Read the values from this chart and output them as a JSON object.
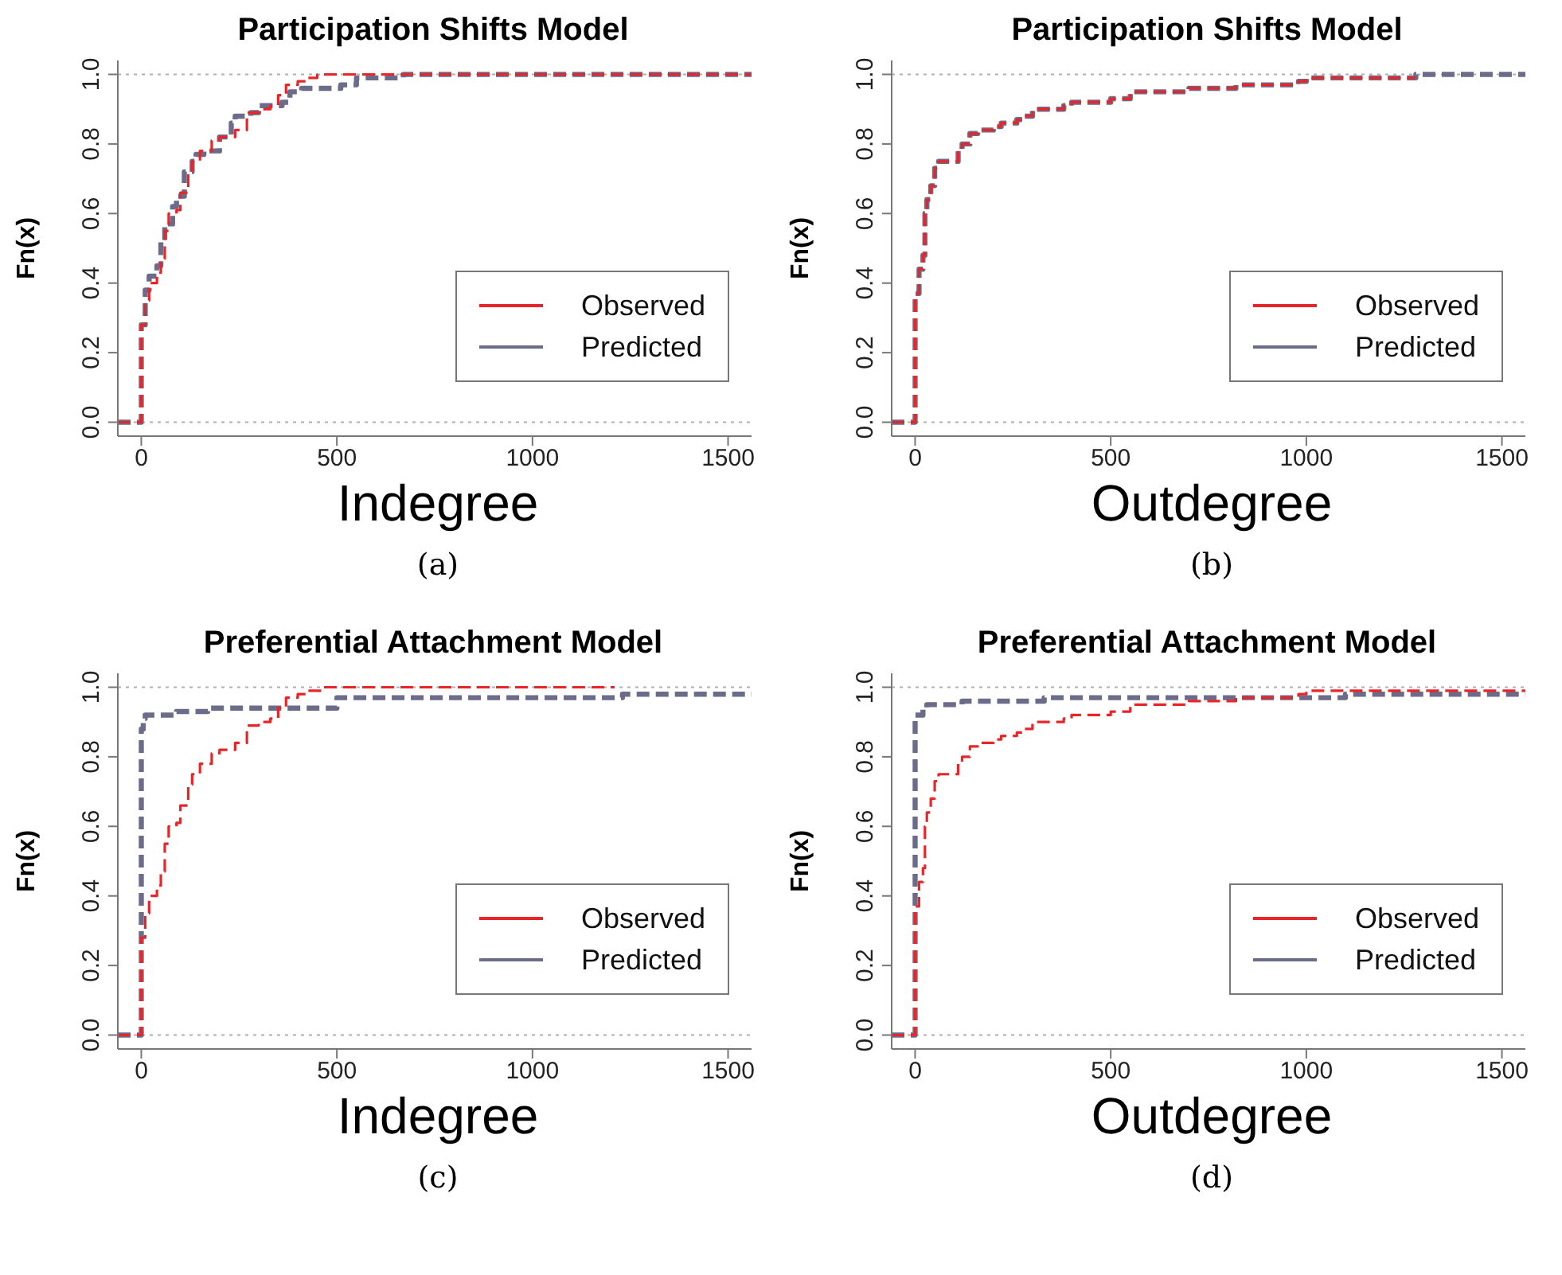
{
  "chart_data": [
    {
      "type": "step",
      "title": "Participation Shifts Model",
      "xlabel": "Indegree",
      "ylabel": "Fn(x)",
      "annotations": [
        "(a)"
      ],
      "xlim": [
        -60,
        1560
      ],
      "ylim": [
        -0.04,
        1.04
      ],
      "xticks": [
        0,
        500,
        1000,
        1500
      ],
      "yticks": [
        {
          "value": 0,
          "label": "0.0"
        },
        {
          "value": 0.2,
          "label": "0.2"
        },
        {
          "value": 0.4,
          "label": "0.4"
        },
        {
          "value": 0.6,
          "label": "0.6"
        },
        {
          "value": 0.8,
          "label": "0.8"
        },
        {
          "value": 1,
          "label": "1.0"
        }
      ],
      "legend": "bottom right",
      "ref_lines": [
        {
          "axis": "y",
          "value": 0,
          "color": "#b0b0b0",
          "line_style": "dotted"
        },
        {
          "axis": "y",
          "value": 1,
          "color": "#b0b0b0",
          "line_style": "dotted"
        }
      ],
      "series": [
        {
          "name": "Observed",
          "color": "#e8262a",
          "line_style": "dashed",
          "x": [
            -60,
            0,
            10,
            20,
            40,
            50,
            60,
            70,
            90,
            100,
            120,
            130,
            150,
            180,
            200,
            240,
            270,
            300,
            330,
            350,
            370,
            400,
            420,
            450,
            1560
          ],
          "values": [
            0,
            0.28,
            0.35,
            0.4,
            0.43,
            0.47,
            0.55,
            0.6,
            0.61,
            0.66,
            0.72,
            0.75,
            0.78,
            0.81,
            0.82,
            0.84,
            0.89,
            0.9,
            0.91,
            0.94,
            0.97,
            0.98,
            0.99,
            1.0,
            1.0
          ]
        },
        {
          "name": "Predicted",
          "color": "#6b6b8a",
          "line_style": "dashed",
          "x": [
            -60,
            0,
            10,
            20,
            40,
            50,
            60,
            80,
            90,
            110,
            130,
            140,
            160,
            200,
            230,
            240,
            280,
            300,
            360,
            380,
            410,
            480,
            510,
            550,
            650,
            670,
            1560
          ],
          "values": [
            0,
            0.28,
            0.38,
            0.42,
            0.45,
            0.52,
            0.57,
            0.62,
            0.65,
            0.72,
            0.75,
            0.77,
            0.78,
            0.82,
            0.86,
            0.88,
            0.89,
            0.91,
            0.92,
            0.95,
            0.96,
            0.96,
            0.97,
            0.99,
            0.99,
            1.0,
            1.0
          ]
        }
      ]
    },
    {
      "type": "step",
      "title": "Participation Shifts Model",
      "xlabel": "Outdegree",
      "ylabel": "Fn(x)",
      "annotations": [
        "(b)"
      ],
      "xlim": [
        -60,
        1560
      ],
      "ylim": [
        -0.04,
        1.04
      ],
      "xticks": [
        0,
        500,
        1000,
        1500
      ],
      "yticks": [
        {
          "value": 0,
          "label": "0.0"
        },
        {
          "value": 0.2,
          "label": "0.2"
        },
        {
          "value": 0.4,
          "label": "0.4"
        },
        {
          "value": 0.6,
          "label": "0.6"
        },
        {
          "value": 0.8,
          "label": "0.8"
        },
        {
          "value": 1,
          "label": "1.0"
        }
      ],
      "legend": "bottom right",
      "ref_lines": [
        {
          "axis": "y",
          "value": 0,
          "color": "#b0b0b0",
          "line_style": "dotted"
        },
        {
          "axis": "y",
          "value": 1,
          "color": "#b0b0b0",
          "line_style": "dotted"
        }
      ],
      "series": [
        {
          "name": "Observed",
          "color": "#e8262a",
          "line_style": "dashed",
          "x": [
            -60,
            0,
            10,
            20,
            25,
            30,
            40,
            50,
            60,
            100,
            110,
            120,
            140,
            160,
            200,
            220,
            260,
            280,
            300,
            380,
            400,
            480,
            500,
            550,
            700,
            820,
            980,
            1000,
            1280
          ],
          "values": [
            0,
            0.37,
            0.44,
            0.48,
            0.6,
            0.64,
            0.68,
            0.73,
            0.75,
            0.75,
            0.78,
            0.8,
            0.83,
            0.84,
            0.85,
            0.86,
            0.87,
            0.88,
            0.9,
            0.91,
            0.92,
            0.92,
            0.93,
            0.95,
            0.96,
            0.97,
            0.98,
            0.99,
            0.99
          ]
        },
        {
          "name": "Predicted",
          "color": "#6b6b8a",
          "line_style": "dashed",
          "x": [
            -60,
            0,
            10,
            20,
            25,
            30,
            40,
            50,
            60,
            100,
            110,
            120,
            140,
            160,
            200,
            220,
            260,
            280,
            300,
            380,
            400,
            480,
            500,
            550,
            700,
            820,
            980,
            1000,
            1280,
            1560
          ],
          "values": [
            0,
            0.37,
            0.44,
            0.48,
            0.6,
            0.64,
            0.68,
            0.73,
            0.75,
            0.75,
            0.78,
            0.8,
            0.83,
            0.84,
            0.85,
            0.86,
            0.87,
            0.88,
            0.9,
            0.91,
            0.92,
            0.92,
            0.93,
            0.95,
            0.96,
            0.97,
            0.98,
            0.99,
            1.0,
            1.0
          ]
        }
      ]
    },
    {
      "type": "step",
      "title": "Preferential Attachment Model",
      "xlabel": "Indegree",
      "ylabel": "Fn(x)",
      "annotations": [
        "(c)"
      ],
      "xlim": [
        -60,
        1560
      ],
      "ylim": [
        -0.04,
        1.04
      ],
      "xticks": [
        0,
        500,
        1000,
        1500
      ],
      "yticks": [
        {
          "value": 0,
          "label": "0.0"
        },
        {
          "value": 0.2,
          "label": "0.2"
        },
        {
          "value": 0.4,
          "label": "0.4"
        },
        {
          "value": 0.6,
          "label": "0.6"
        },
        {
          "value": 0.8,
          "label": "0.8"
        },
        {
          "value": 1,
          "label": "1.0"
        }
      ],
      "legend": "bottom right",
      "ref_lines": [
        {
          "axis": "y",
          "value": 0,
          "color": "#b0b0b0",
          "line_style": "dotted"
        },
        {
          "axis": "y",
          "value": 1,
          "color": "#b0b0b0",
          "line_style": "dotted"
        }
      ],
      "series": [
        {
          "name": "Observed",
          "color": "#e8262a",
          "line_style": "dashed",
          "x": [
            -60,
            0,
            10,
            20,
            40,
            50,
            60,
            70,
            90,
            100,
            120,
            130,
            150,
            180,
            200,
            240,
            270,
            300,
            330,
            350,
            370,
            400,
            420,
            460,
            1210
          ],
          "values": [
            0,
            0.28,
            0.35,
            0.4,
            0.43,
            0.47,
            0.55,
            0.6,
            0.61,
            0.66,
            0.72,
            0.75,
            0.78,
            0.81,
            0.82,
            0.84,
            0.89,
            0.9,
            0.91,
            0.94,
            0.97,
            0.98,
            0.99,
            1.0,
            1.0
          ]
        },
        {
          "name": "Predicted",
          "color": "#6b6b8a",
          "line_style": "dashed",
          "x": [
            -60,
            0,
            5,
            10,
            90,
            170,
            480,
            500,
            1220,
            1230,
            1560
          ],
          "values": [
            0,
            0.88,
            0.91,
            0.92,
            0.93,
            0.94,
            0.94,
            0.97,
            0.97,
            0.98,
            0.98
          ]
        }
      ]
    },
    {
      "type": "step",
      "title": "Preferential Attachment Model",
      "xlabel": "Outdegree",
      "ylabel": "Fn(x)",
      "annotations": [
        "(d)"
      ],
      "xlim": [
        -60,
        1560
      ],
      "ylim": [
        -0.04,
        1.04
      ],
      "xticks": [
        0,
        500,
        1000,
        1500
      ],
      "yticks": [
        {
          "value": 0,
          "label": "0.0"
        },
        {
          "value": 0.2,
          "label": "0.2"
        },
        {
          "value": 0.4,
          "label": "0.4"
        },
        {
          "value": 0.6,
          "label": "0.6"
        },
        {
          "value": 0.8,
          "label": "0.8"
        },
        {
          "value": 1,
          "label": "1.0"
        }
      ],
      "legend": "bottom right",
      "ref_lines": [
        {
          "axis": "y",
          "value": 0,
          "color": "#b0b0b0",
          "line_style": "dotted"
        },
        {
          "axis": "y",
          "value": 1,
          "color": "#b0b0b0",
          "line_style": "dotted"
        }
      ],
      "series": [
        {
          "name": "Observed",
          "color": "#e8262a",
          "line_style": "dashed",
          "x": [
            -60,
            0,
            10,
            20,
            25,
            30,
            40,
            50,
            60,
            100,
            110,
            120,
            140,
            160,
            200,
            220,
            260,
            280,
            300,
            380,
            400,
            480,
            500,
            550,
            700,
            820,
            980,
            1000,
            1120,
            1560
          ],
          "values": [
            0,
            0.37,
            0.44,
            0.48,
            0.6,
            0.64,
            0.68,
            0.73,
            0.75,
            0.75,
            0.78,
            0.8,
            0.83,
            0.84,
            0.85,
            0.86,
            0.87,
            0.88,
            0.9,
            0.91,
            0.92,
            0.92,
            0.93,
            0.95,
            0.96,
            0.97,
            0.98,
            0.99,
            0.99,
            0.99
          ]
        },
        {
          "name": "Predicted",
          "color": "#6b6b8a",
          "line_style": "dashed",
          "x": [
            -60,
            0,
            20,
            30,
            100,
            120,
            330,
            1100,
            1560
          ],
          "values": [
            0,
            0.92,
            0.94,
            0.95,
            0.95,
            0.96,
            0.97,
            0.98,
            0.98
          ]
        }
      ]
    }
  ]
}
